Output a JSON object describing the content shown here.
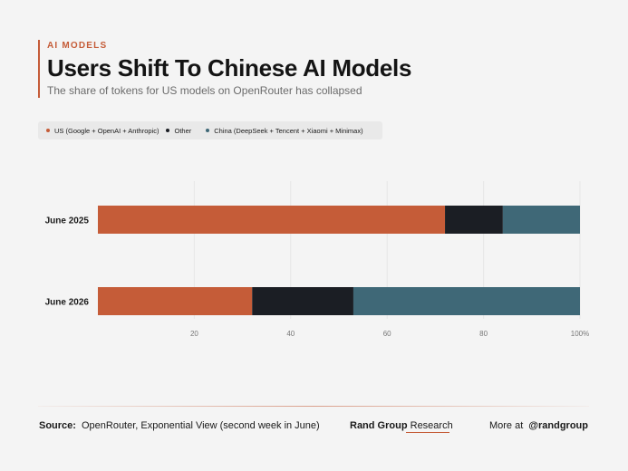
{
  "header": {
    "kicker": "AI MODELS",
    "title": "Users Shift To Chinese AI Models",
    "subtitle": "The share of tokens for US models on OpenRouter has collapsed"
  },
  "colors": {
    "us": "#c55c38",
    "other": "#1b1e24",
    "china": "#3f6877",
    "accent": "#c55c38"
  },
  "chart_data": {
    "type": "bar",
    "orientation": "horizontal",
    "stacked": true,
    "categories": [
      "June 2025",
      "June 2026"
    ],
    "series": [
      {
        "name": "US (Google + OpenAI + Anthropic)",
        "values": [
          72,
          32
        ]
      },
      {
        "name": "Other",
        "values": [
          12,
          21
        ]
      },
      {
        "name": "China (DeepSeek + Tencent + Xiaomi + Minimax)",
        "values": [
          16,
          47
        ]
      }
    ],
    "xlim": [
      0,
      100
    ],
    "xticks": [
      "20",
      "40",
      "60",
      "80",
      "100%"
    ],
    "xtick_values": [
      20,
      40,
      60,
      80,
      100
    ],
    "grid": "vertical",
    "legend": "top-left"
  },
  "footer": {
    "source_label": "Source:",
    "source_text": "OpenRouter, Exponential View (second week in June)",
    "brand_bold": "Rand Group",
    "brand_light": "Research",
    "more_text": "More at",
    "handle": "@randgroup"
  }
}
